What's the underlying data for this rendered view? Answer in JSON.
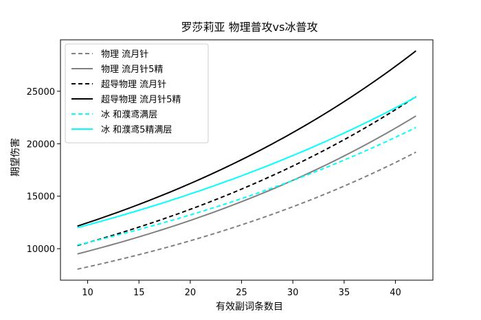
{
  "chart_data": {
    "type": "line",
    "title": "罗莎莉亚 物理普攻vs冰普攻",
    "xlabel": "有效副词条数目",
    "ylabel": "期望伤害",
    "xlim": [
      7.35,
      43.65
    ],
    "ylim": [
      7000,
      29900
    ],
    "xticks": [
      10,
      15,
      20,
      25,
      30,
      35,
      40
    ],
    "yticks": [
      10000,
      15000,
      20000,
      25000
    ],
    "grid": false,
    "legend_position": "top-left",
    "x": [
      9,
      42
    ],
    "series": [
      {
        "name": "物理 流月针",
        "color": "#808080",
        "dash": "dashed",
        "start": 8050,
        "end": 19200
      },
      {
        "name": "物理 流月针5精",
        "color": "#808080",
        "dash": "solid",
        "start": 9500,
        "end": 22650
      },
      {
        "name": "超导物理 流月针",
        "color": "#000000",
        "dash": "dashed",
        "start": 10300,
        "end": 24500
      },
      {
        "name": "超导物理 流月针5精",
        "color": "#000000",
        "dash": "solid",
        "start": 12150,
        "end": 28850
      },
      {
        "name": "冰 和濮鸢满层",
        "color": "#00ffff",
        "dash": "dashed",
        "start": 10350,
        "end": 21550
      },
      {
        "name": "冰 和濮鸢5精满层",
        "color": "#00ffff",
        "dash": "solid",
        "start": 12000,
        "end": 24450
      }
    ]
  }
}
